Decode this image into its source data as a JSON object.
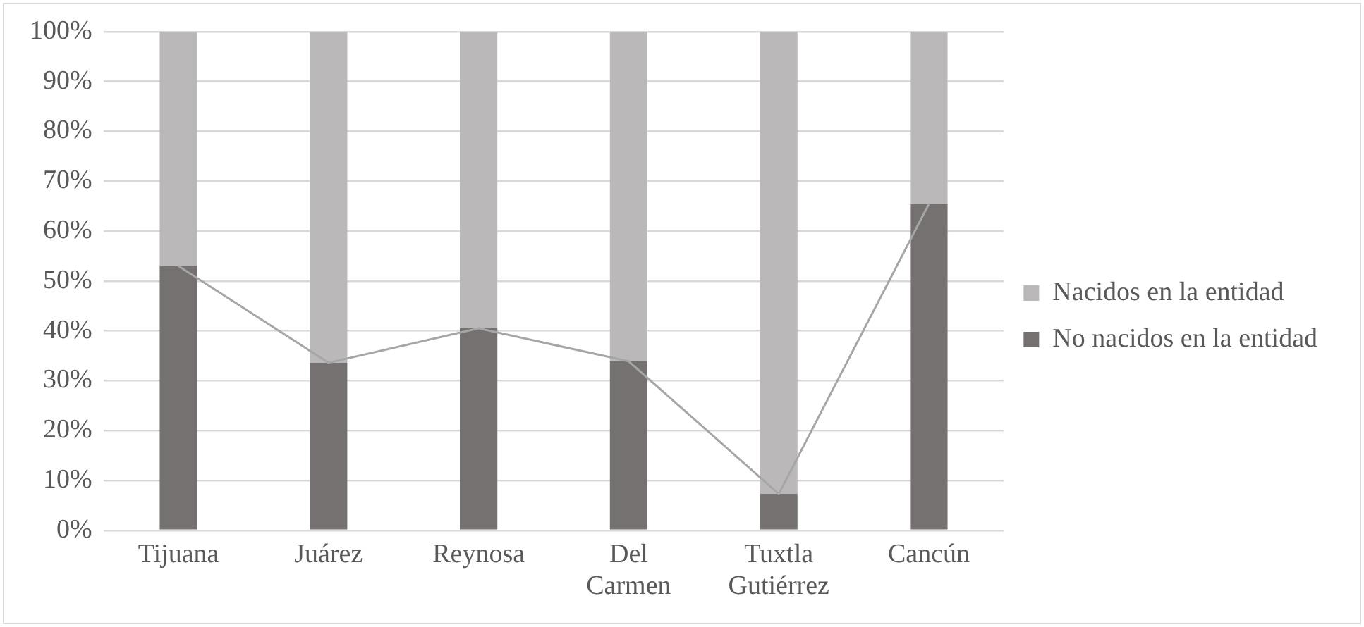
{
  "chart_data": {
    "type": "bar",
    "stacked": true,
    "categories": [
      "Tijuana",
      "Juárez",
      "Reynosa",
      "Del Carmen",
      "Tuxtla Gutiérrez",
      "Cancún"
    ],
    "series": [
      {
        "name": "No nacidos en la entidad",
        "color": "#767171",
        "values": [
          53,
          33.6,
          40.5,
          33.9,
          7.3,
          65.4
        ]
      },
      {
        "name": "Nacidos en la entidad",
        "color": "#bab8b8",
        "values": [
          47,
          66.4,
          59.5,
          66.1,
          92.7,
          34.6
        ]
      },
      {
        "type": "line",
        "color": "#a6a6a6",
        "marker": "none",
        "values": [
          53,
          33.6,
          40.5,
          33.9,
          7.3,
          65.4
        ]
      }
    ],
    "ylim": [
      0,
      100
    ],
    "yticks": [
      {
        "value": 0,
        "label": "0%"
      },
      {
        "value": 10,
        "label": "10%"
      },
      {
        "value": 20,
        "label": "20%"
      },
      {
        "value": 30,
        "label": "30%"
      },
      {
        "value": 40,
        "label": "40%"
      },
      {
        "value": 50,
        "label": "50%"
      },
      {
        "value": 60,
        "label": "60%"
      },
      {
        "value": 70,
        "label": "70%"
      },
      {
        "value": 80,
        "label": "80%"
      },
      {
        "value": 90,
        "label": "90%"
      },
      {
        "value": 100,
        "label": "100%"
      }
    ],
    "grid": "y",
    "legend": "right"
  }
}
